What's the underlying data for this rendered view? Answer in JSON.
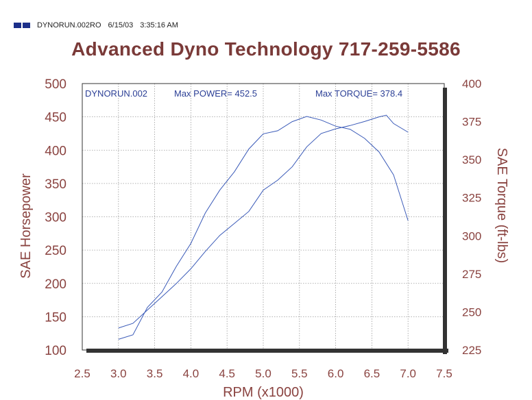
{
  "header": {
    "run_id": "DYNORUN.002RO",
    "date": "6/15/03",
    "time": "3:35:16 AM"
  },
  "title": "Advanced Dyno Technology 717-259-5586",
  "colors": {
    "title": "#7a3a38",
    "axis_text": "#8a4340",
    "curve": "#3a5ab8",
    "info_text": "#2b3f96",
    "logo": "#1c2f8a"
  },
  "chart_data": {
    "type": "line",
    "run_label": "DYNORUN.002",
    "max_power_label": "Max POWER= 452.5",
    "max_torque_label": "Max TORQUE= 378.4",
    "xlabel": "RPM (x1000)",
    "ylabel_left": "SAE Horsepower",
    "ylabel_right": "SAE Torque (ft-lbs)",
    "xlim": [
      2.5,
      7.5
    ],
    "ylim_left": [
      100,
      500
    ],
    "ylim_right": [
      225,
      400
    ],
    "x_ticks": [
      "2.5",
      "3.0",
      "3.5",
      "4.0",
      "4.5",
      "5.0",
      "5.5",
      "6.0",
      "6.5",
      "7.0",
      "7.5"
    ],
    "y_ticks_left": [
      "100",
      "150",
      "200",
      "250",
      "300",
      "350",
      "400",
      "450",
      "500"
    ],
    "y_ticks_right": [
      "225",
      "250",
      "275",
      "300",
      "325",
      "350",
      "375",
      "400"
    ],
    "grid": true,
    "series": [
      {
        "axis": "left",
        "x": [
          3.0,
          3.2,
          3.4,
          3.6,
          3.8,
          4.0,
          4.2,
          4.4,
          4.6,
          4.8,
          5.0,
          5.2,
          5.4,
          5.6,
          5.8,
          6.0,
          6.2,
          6.4,
          6.6,
          6.7,
          6.8,
          7.0
        ],
        "y": [
          133,
          140,
          160,
          180,
          200,
          222,
          248,
          272,
          290,
          308,
          340,
          355,
          375,
          405,
          425,
          432,
          437,
          443,
          450,
          452.5,
          440,
          427
        ]
      },
      {
        "axis": "right",
        "x": [
          3.0,
          3.2,
          3.4,
          3.6,
          3.8,
          4.0,
          4.2,
          4.4,
          4.6,
          4.8,
          5.0,
          5.2,
          5.4,
          5.6,
          5.8,
          6.0,
          6.2,
          6.4,
          6.6,
          6.8,
          7.0
        ],
        "y": [
          232,
          235,
          253,
          263,
          280,
          295,
          315,
          330,
          342,
          357,
          367,
          369,
          375,
          378.4,
          376,
          372,
          370,
          364,
          355,
          340,
          310
        ]
      }
    ]
  }
}
